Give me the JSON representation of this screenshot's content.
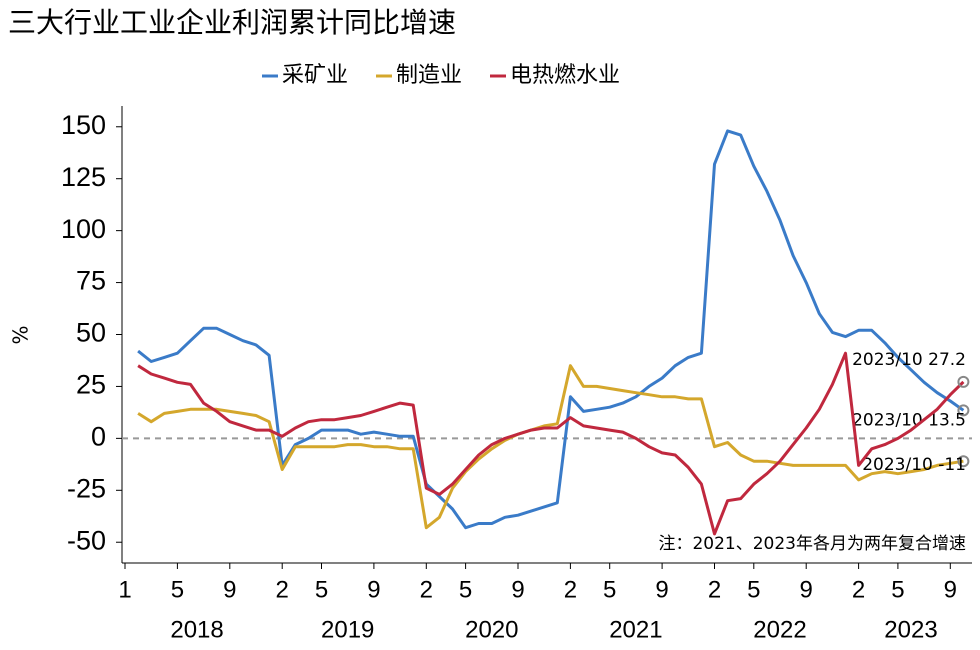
{
  "chart_data": {
    "type": "line",
    "title": "三大行业工业企业利润累计同比增速",
    "y_label": "%",
    "note": "注：2021、2023年各月为两年复合增速",
    "categories": [
      "2018-01",
      "2018-02",
      "2018-03",
      "2018-04",
      "2018-05",
      "2018-06",
      "2018-07",
      "2018-08",
      "2018-09",
      "2018-10",
      "2018-11",
      "2018-12",
      "2019-02",
      "2019-03",
      "2019-04",
      "2019-05",
      "2019-06",
      "2019-07",
      "2019-08",
      "2019-09",
      "2019-10",
      "2019-11",
      "2019-12",
      "2020-02",
      "2020-03",
      "2020-04",
      "2020-05",
      "2020-06",
      "2020-07",
      "2020-08",
      "2020-09",
      "2020-10",
      "2020-11",
      "2020-12",
      "2021-02",
      "2021-03",
      "2021-04",
      "2021-05",
      "2021-06",
      "2021-07",
      "2021-08",
      "2021-09",
      "2021-10",
      "2021-11",
      "2021-12",
      "2022-02",
      "2022-03",
      "2022-04",
      "2022-05",
      "2022-06",
      "2022-07",
      "2022-08",
      "2022-09",
      "2022-10",
      "2022-11",
      "2022-12",
      "2023-02",
      "2023-03",
      "2023-04",
      "2023-05",
      "2023-06",
      "2023-07",
      "2023-08",
      "2023-09",
      "2023-10"
    ],
    "series": [
      {
        "name": "采矿业",
        "color": "#3a7bc8",
        "end_label": "2023/10 13.5",
        "values": [
          null,
          42,
          37,
          39,
          41,
          47,
          53,
          53,
          50,
          47,
          45,
          40,
          -13,
          -3,
          0,
          4,
          4,
          4,
          2,
          3,
          2,
          1,
          1,
          -22,
          -28,
          -34,
          -43,
          -41,
          -41,
          -38,
          -37,
          -35,
          -33,
          -31,
          20,
          13,
          14,
          15,
          17,
          20,
          25,
          29,
          35,
          39,
          41,
          132,
          148,
          146,
          131,
          119,
          105,
          88,
          75,
          60,
          51,
          49,
          52,
          52,
          46,
          39,
          33,
          27,
          22,
          18,
          13.5
        ]
      },
      {
        "name": "制造业",
        "color": "#d4a72c",
        "end_label": "2023/10 -11",
        "values": [
          null,
          12,
          8,
          12,
          13,
          14,
          14,
          14,
          13,
          12,
          11,
          8,
          -15,
          -4,
          -4,
          -4,
          -4,
          -3,
          -3,
          -4,
          -4,
          -5,
          -5,
          -43,
          -38,
          -24,
          -16,
          -10,
          -5,
          -1,
          2,
          4,
          6,
          7,
          35,
          25,
          25,
          24,
          23,
          22,
          21,
          20,
          20,
          19,
          19,
          -4,
          -2,
          -8,
          -11,
          -11,
          -12,
          -13,
          -13,
          -13,
          -13,
          -13,
          -20,
          -17,
          -16,
          -17,
          -16,
          -15,
          -13,
          -12,
          -11
        ]
      },
      {
        "name": "电热燃水业",
        "color": "#c0283e",
        "end_label": "2023/10 27.2",
        "values": [
          null,
          35,
          31,
          29,
          27,
          26,
          17,
          13,
          8,
          6,
          4,
          4,
          1,
          5,
          8,
          9,
          9,
          10,
          11,
          13,
          15,
          17,
          16,
          -24,
          -27,
          -22,
          -15,
          -8,
          -3,
          0,
          2,
          4,
          5,
          5,
          10,
          6,
          5,
          4,
          3,
          0,
          -4,
          -7,
          -8,
          -14,
          -22,
          -46,
          -30,
          -29,
          -22,
          -17,
          -11,
          -3,
          5,
          14,
          26,
          41,
          -13,
          -5,
          -3,
          0,
          4,
          9,
          14,
          21,
          27.2
        ]
      }
    ],
    "ylim": [
      -60,
      160
    ],
    "yticks": [
      -50,
      -25,
      0,
      25,
      50,
      75,
      100,
      125,
      150
    ],
    "xticks": [
      {
        "value": "2018-01",
        "label": "1"
      },
      {
        "value": "2018-05",
        "label": "5"
      },
      {
        "value": "2018-09",
        "label": "9"
      },
      {
        "value": "2019-02",
        "label": "2"
      },
      {
        "value": "2019-05",
        "label": "5"
      },
      {
        "value": "2019-09",
        "label": "9"
      },
      {
        "value": "2020-02",
        "label": "2"
      },
      {
        "value": "2020-05",
        "label": "5"
      },
      {
        "value": "2020-09",
        "label": "9"
      },
      {
        "value": "2021-02",
        "label": "2"
      },
      {
        "value": "2021-05",
        "label": "5"
      },
      {
        "value": "2021-09",
        "label": "9"
      },
      {
        "value": "2022-02",
        "label": "2"
      },
      {
        "value": "2022-05",
        "label": "5"
      },
      {
        "value": "2022-09",
        "label": "9"
      },
      {
        "value": "2023-02",
        "label": "2"
      },
      {
        "value": "2023-05",
        "label": "5"
      },
      {
        "value": "2023-09",
        "label": "9"
      }
    ],
    "x_groups": [
      {
        "label": "2018",
        "start": "2018-01",
        "end": "2018-12"
      },
      {
        "label": "2019",
        "start": "2019-02",
        "end": "2019-12"
      },
      {
        "label": "2020",
        "start": "2020-02",
        "end": "2020-12"
      },
      {
        "label": "2021",
        "start": "2021-02",
        "end": "2021-12"
      },
      {
        "label": "2022",
        "start": "2022-02",
        "end": "2022-12"
      },
      {
        "label": "2023",
        "start": "2023-02",
        "end": "2023-10"
      }
    ],
    "zero_line": true,
    "legend": "top"
  }
}
